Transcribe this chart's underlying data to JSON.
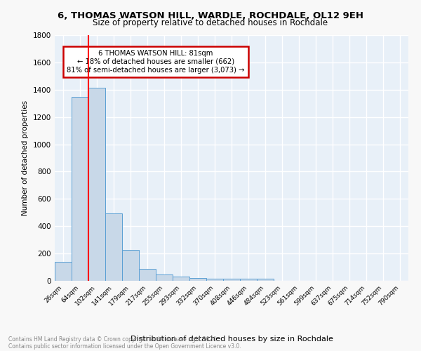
{
  "title1": "6, THOMAS WATSON HILL, WARDLE, ROCHDALE, OL12 9EH",
  "title2": "Size of property relative to detached houses in Rochdale",
  "xlabel": "Distribution of detached houses by size in Rochdale",
  "ylabel": "Number of detached properties",
  "footnote": "Contains HM Land Registry data © Crown copyright and database right 2024.\nContains public sector information licensed under the Open Government Licence v3.0.",
  "bin_labels": [
    "26sqm",
    "64sqm",
    "102sqm",
    "141sqm",
    "179sqm",
    "217sqm",
    "255sqm",
    "293sqm",
    "332sqm",
    "370sqm",
    "408sqm",
    "446sqm",
    "484sqm",
    "523sqm",
    "561sqm",
    "599sqm",
    "637sqm",
    "675sqm",
    "714sqm",
    "752sqm",
    "790sqm"
  ],
  "bar_values": [
    140,
    1350,
    1415,
    495,
    228,
    85,
    48,
    30,
    20,
    15,
    15,
    15,
    15,
    0,
    0,
    0,
    0,
    0,
    0,
    0,
    0
  ],
  "bar_color": "#c8d8e8",
  "bar_edge_color": "#5a9fd4",
  "annotation_text": "6 THOMAS WATSON HILL: 81sqm\n← 18% of detached houses are smaller (662)\n81% of semi-detached houses are larger (3,073) →",
  "annotation_box_color": "#ffffff",
  "annotation_box_edge_color": "#cc0000",
  "red_line_x": 1.5,
  "ylim": [
    0,
    1800
  ],
  "yticks": [
    0,
    200,
    400,
    600,
    800,
    1000,
    1200,
    1400,
    1600,
    1800
  ],
  "plot_bg_color": "#e8f0f8",
  "fig_bg_color": "#f8f8f8",
  "grid_color": "#ffffff"
}
